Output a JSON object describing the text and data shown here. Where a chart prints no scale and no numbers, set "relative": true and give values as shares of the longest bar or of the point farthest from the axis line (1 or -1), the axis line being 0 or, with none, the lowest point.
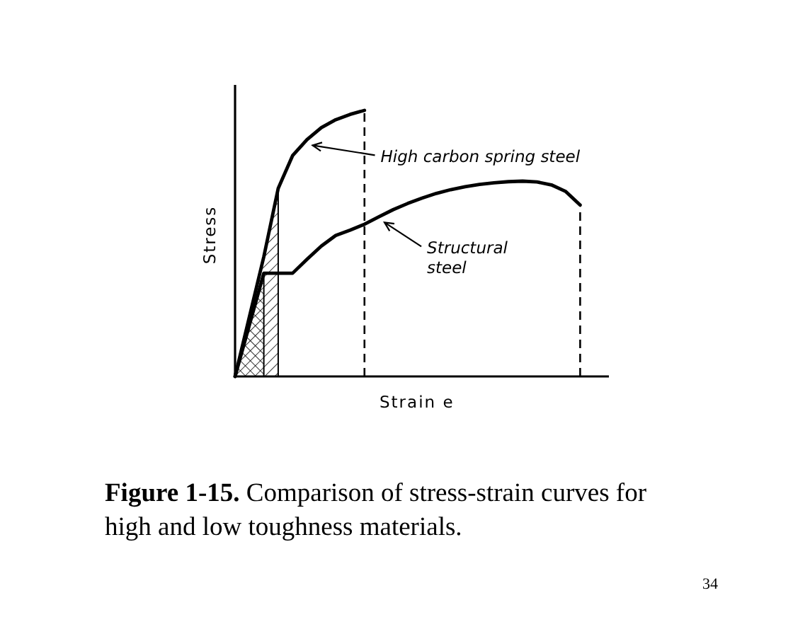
{
  "chart_data": {
    "type": "line",
    "relative": true,
    "xlabel": "Strain e",
    "ylabel": "Stress",
    "line_style": "solid",
    "legend": "right",
    "categories": [
      null,
      null,
      null,
      null,
      null,
      null,
      null,
      null,
      null,
      null,
      null,
      null,
      null,
      null,
      null,
      null,
      null,
      null,
      null,
      null,
      null,
      null,
      null,
      null,
      null
    ],
    "series": [
      {
        "name": "High carbon spring steel",
        "color": "#000000",
        "values": [
          0,
          0.225,
          0.45,
          0.707,
          0.83,
          0.89,
          0.935,
          0.965,
          0.985,
          1,
          null,
          null,
          null,
          null,
          null,
          null,
          null,
          null,
          null,
          null,
          null,
          null,
          null,
          null,
          null
        ]
      },
      {
        "name": "Structural steel",
        "color": "#000000",
        "values": [
          0,
          0.194,
          0.388,
          0.388,
          0.388,
          0.44,
          0.49,
          0.53,
          0.55,
          0.572,
          0.6,
          0.627,
          0.65,
          0.67,
          0.688,
          0.702,
          0.713,
          0.722,
          0.728,
          0.732,
          0.734,
          0.731,
          0.72,
          0.695,
          0.644
        ]
      }
    ],
    "annotations": [
      "Figure 1-15. Comparison of stress-strain curves for high and low toughness materials.",
      "34"
    ]
  }
}
